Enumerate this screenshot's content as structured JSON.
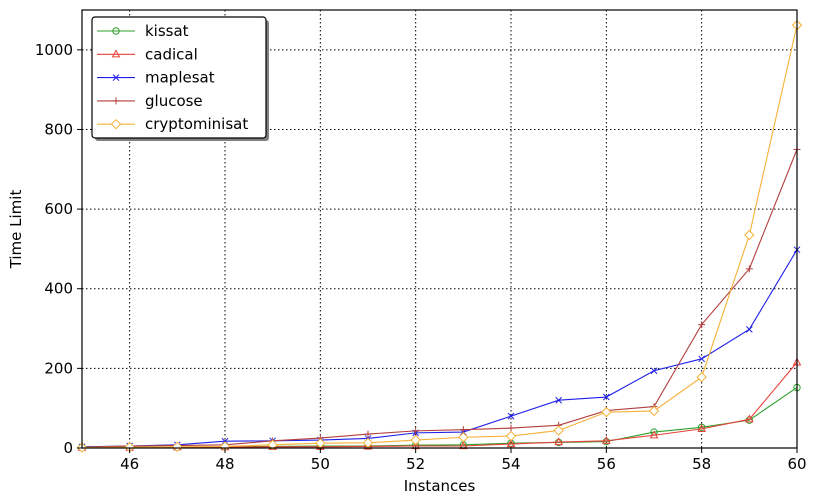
{
  "chart_data": {
    "type": "line",
    "title": "",
    "xlabel": "Instances",
    "ylabel": "Time Limit",
    "xlim": [
      45,
      60
    ],
    "ylim": [
      0,
      1100
    ],
    "xticks": [
      46,
      48,
      50,
      52,
      54,
      56,
      58,
      60
    ],
    "yticks": [
      0,
      200,
      400,
      600,
      800,
      1000
    ],
    "grid": true,
    "legend_position": "top-left",
    "x": [
      45,
      46,
      47,
      48,
      49,
      50,
      51,
      52,
      53,
      54,
      55,
      56,
      57,
      58,
      59,
      60
    ],
    "series": [
      {
        "name": "kissat",
        "color": "#2ca02c",
        "marker": "circle",
        "values": [
          2,
          2,
          2,
          3,
          4,
          5,
          5,
          7,
          8,
          12,
          14,
          16,
          40,
          52,
          70,
          152
        ]
      },
      {
        "name": "cadical",
        "color": "#e8413a",
        "marker": "triangle",
        "values": [
          1,
          1,
          2,
          2,
          3,
          3,
          4,
          5,
          5,
          10,
          15,
          18,
          32,
          48,
          72,
          215
        ]
      },
      {
        "name": "maplesat",
        "color": "#1f1fe8",
        "marker": "x",
        "values": [
          3,
          5,
          8,
          17,
          18,
          20,
          24,
          38,
          40,
          80,
          120,
          128,
          194,
          224,
          298,
          498
        ]
      },
      {
        "name": "glucose",
        "color": "#b33e3e",
        "marker": "plus",
        "values": [
          2,
          5,
          6,
          8,
          18,
          25,
          35,
          43,
          46,
          50,
          57,
          94,
          104,
          310,
          450,
          750
        ]
      },
      {
        "name": "cryptominisat",
        "color": "#f5b035",
        "marker": "diamond",
        "values": [
          1,
          2,
          3,
          4,
          8,
          12,
          13,
          20,
          27,
          30,
          44,
          90,
          93,
          178,
          535,
          1062
        ]
      }
    ]
  }
}
